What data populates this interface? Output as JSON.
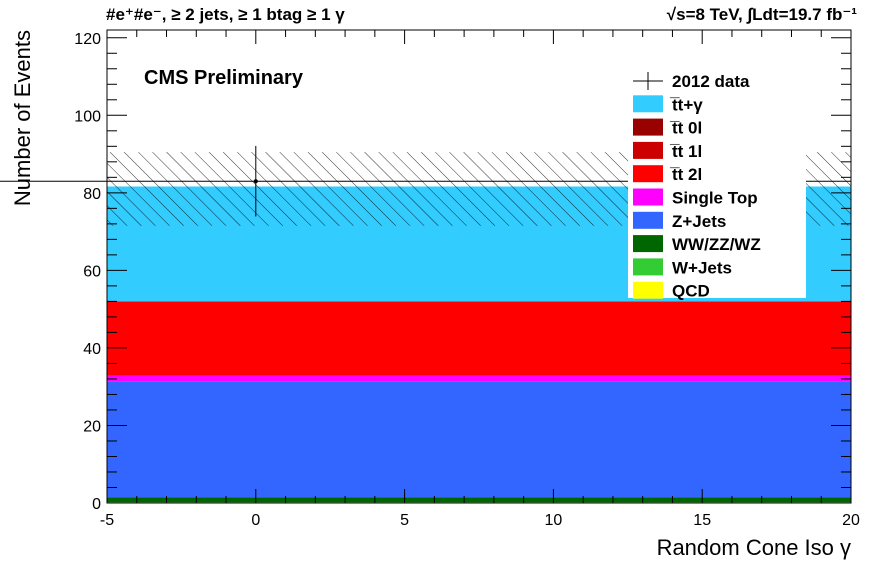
{
  "header": {
    "left_text": "#e⁺#e⁻, ≥ 2 jets, ≥ 1 btag ≥ 1 γ",
    "lumi_text": "√s=8 TeV,   ∫Ldt=19.7 fb⁻¹"
  },
  "chart_data": {
    "type": "bar",
    "title": "",
    "label": "CMS Preliminary",
    "xlabel": "Random Cone Iso γ",
    "ylabel": "Number of Events",
    "xlim": [
      -5,
      20
    ],
    "ylim": [
      0,
      122
    ],
    "xticks": [
      -5,
      0,
      5,
      10,
      15,
      20
    ],
    "yticks": [
      0,
      20,
      40,
      60,
      80,
      100,
      120
    ],
    "bin": {
      "xmin": -5,
      "xmax": 20
    },
    "stack": [
      {
        "name": "QCD",
        "color": "#ffff00",
        "value": 0.0
      },
      {
        "name": "W+Jets",
        "color": "#33cc33",
        "value": 0.2
      },
      {
        "name": "WW/ZZ/WZ",
        "color": "#006600",
        "value": 1.3
      },
      {
        "name": "Z+Jets",
        "color": "#3366ff",
        "value": 29.8
      },
      {
        "name": "Single Top",
        "color": "#ff00ff",
        "value": 1.5
      },
      {
        "name": "t̅t 2l",
        "color": "#ff0000",
        "value": 19.2
      },
      {
        "name": "t̅t 1l",
        "color": "#cc0000",
        "value": 0.0
      },
      {
        "name": "t̅t 0l",
        "color": "#990000",
        "value": 0.0
      },
      {
        "name": "t̅t+γ",
        "color": "#33ccff",
        "value": 29.5
      }
    ],
    "uncertainty": {
      "low": 71.5,
      "high": 90.5
    },
    "data": [
      {
        "x": 0,
        "y": 83,
        "err": 9.1,
        "xerr": 25
      }
    ],
    "legend": {
      "placement": "top-right",
      "entries": [
        {
          "label": "2012 data",
          "kind": "data"
        },
        {
          "label": "t̅t+γ",
          "color": "#33ccff"
        },
        {
          "label": "t̅t 0l",
          "color": "#990000"
        },
        {
          "label": "t̅t 1l",
          "color": "#cc0000"
        },
        {
          "label": "t̅t 2l",
          "color": "#ff0000"
        },
        {
          "label": "Single Top",
          "color": "#ff00ff"
        },
        {
          "label": "Z+Jets",
          "color": "#3366ff"
        },
        {
          "label": "WW/ZZ/WZ",
          "color": "#006600"
        },
        {
          "label": "W+Jets",
          "color": "#33cc33"
        },
        {
          "label": "QCD",
          "color": "#ffff00"
        }
      ]
    }
  }
}
